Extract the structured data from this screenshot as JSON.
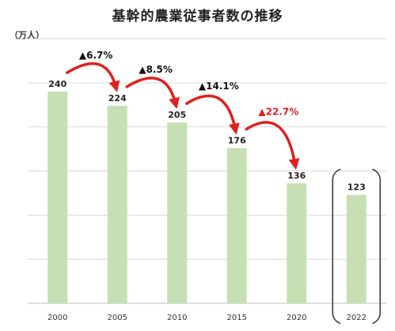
{
  "chart_data": {
    "type": "bar",
    "title": "基幹的農業従事者数の推移",
    "ylabel": "（万人）",
    "categories": [
      "2000",
      "2005",
      "2010",
      "2015",
      "2020",
      "2022"
    ],
    "values": [
      240,
      224,
      205,
      176,
      136,
      123
    ],
    "ylim": [
      0,
      300
    ],
    "grid": true,
    "bar_color": "#c6e0b4",
    "highlight_category": "2022",
    "changes": [
      {
        "from": "2000",
        "to": "2005",
        "label": "▲6.7%",
        "color": "#111111"
      },
      {
        "from": "2005",
        "to": "2010",
        "label": "▲8.5%",
        "color": "#111111"
      },
      {
        "from": "2010",
        "to": "2015",
        "label": "▲14.1%",
        "color": "#111111"
      },
      {
        "from": "2015",
        "to": "2020",
        "label": "▲22.7%",
        "color": "#e02020"
      }
    ],
    "arrow_color": "#e02020"
  }
}
